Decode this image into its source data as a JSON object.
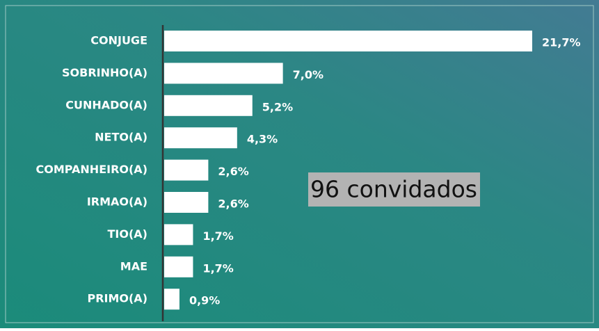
{
  "chart_data": {
    "type": "bar",
    "orientation": "horizontal",
    "categories": [
      "CONJUGE",
      "SOBRINHO(A)",
      "CUNHADO(A)",
      "NETO(A)",
      "COMPANHEIRO(A)",
      "IRMAO(A)",
      "TIO(A)",
      "MAE",
      "PRIMO(A)"
    ],
    "values": [
      21.7,
      7.0,
      5.2,
      4.3,
      2.6,
      2.6,
      1.7,
      1.7,
      0.9
    ],
    "value_labels": [
      "21,7%",
      "7,0%",
      "5,2%",
      "4,3%",
      "2,6%",
      "2,6%",
      "1,7%",
      "1,7%",
      "0,9%"
    ],
    "color": "#ffffff",
    "annotation": "96 convidados"
  }
}
